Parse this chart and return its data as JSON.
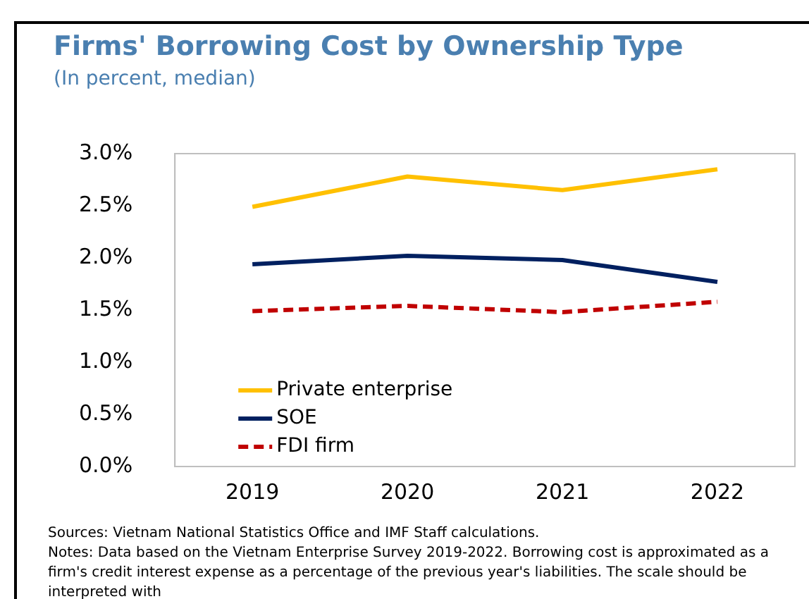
{
  "chart_data": {
    "type": "line",
    "title": "Firms' Borrowing Cost by Ownership Type",
    "subtitle": "(In percent, median)",
    "categories": [
      "2019",
      "2020",
      "2021",
      "2022"
    ],
    "series": [
      {
        "name": "Private enterprise",
        "color": "#ffc000",
        "values": [
          2.49,
          2.78,
          2.65,
          2.85
        ]
      },
      {
        "name": "SOE",
        "color": "#002060",
        "values": [
          1.94,
          2.02,
          1.98,
          1.77
        ]
      },
      {
        "name": "FDI firm",
        "color": "#c00000",
        "values": [
          1.49,
          1.54,
          1.48,
          1.58
        ],
        "line_style": "dashed"
      }
    ],
    "ylim": [
      0,
      3
    ],
    "yticks": [
      {
        "value": 0,
        "label": "0.0%"
      },
      {
        "value": 0.5,
        "label": "0.5%"
      },
      {
        "value": 1,
        "label": "1.0%"
      },
      {
        "value": 1.5,
        "label": "1.5%"
      },
      {
        "value": 2,
        "label": "2.0%"
      },
      {
        "value": 2.5,
        "label": "2.5%"
      },
      {
        "value": 3,
        "label": "3.0%"
      }
    ],
    "grid": false,
    "legend": "bottom left",
    "marker": "none",
    "line_style": "solid",
    "annotations": [
      "Sources: Vietnam National Statistics Office and IMF Staff calculations.",
      "Notes: Data based on the Vietnam Enterprise Survey 2019-2022. Borrowing cost is approximated as a firm's credit interest expense as a percentage of the previous year's liabilities. The scale should be interpreted with"
    ]
  }
}
